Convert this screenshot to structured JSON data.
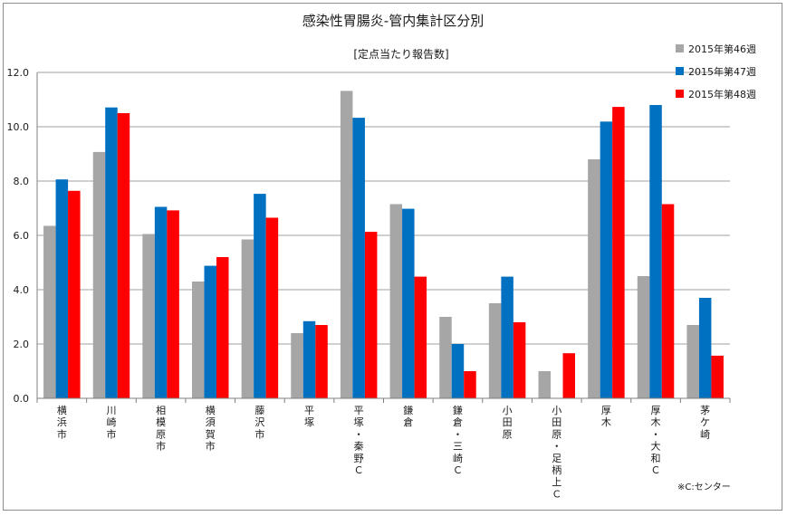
{
  "chart_data": {
    "type": "bar",
    "title": "感染性胃腸炎-管内集計区分別",
    "subtitle": "[定点当たり報告数]",
    "ylim": [
      0,
      12
    ],
    "yticks": [
      "0.0",
      "2.0",
      "4.0",
      "6.0",
      "8.0",
      "10.0",
      "12.0"
    ],
    "grid": true,
    "legend_position": "top-right",
    "categories": [
      "横浜市",
      "川崎市",
      "相模原市",
      "横須賀市",
      "藤沢市",
      "平塚",
      "平塚・秦野Ｃ",
      "鎌倉",
      "鎌倉・三崎Ｃ",
      "小田原",
      "小田原・足柄上Ｃ",
      "厚木",
      "厚木・大和Ｃ",
      "茅ケ崎"
    ],
    "series": [
      {
        "name": "2015年第46週",
        "color": "#a6a6a6",
        "values": [
          6.35,
          9.07,
          6.05,
          4.3,
          5.85,
          2.4,
          11.32,
          7.15,
          3.0,
          3.5,
          1.0,
          8.8,
          4.5,
          2.7
        ]
      },
      {
        "name": "2015年第47週",
        "color": "#0070c0",
        "values": [
          8.06,
          10.71,
          7.05,
          4.88,
          7.53,
          2.84,
          10.33,
          6.98,
          2.0,
          4.48,
          0.0,
          10.19,
          10.8,
          3.7
        ]
      },
      {
        "name": "2015年第48週",
        "color": "#ff0000",
        "values": [
          7.64,
          10.5,
          6.92,
          5.2,
          6.65,
          2.7,
          6.13,
          4.48,
          1.0,
          2.8,
          1.66,
          10.73,
          7.15,
          1.57
        ]
      }
    ],
    "note": "※C:センター"
  }
}
